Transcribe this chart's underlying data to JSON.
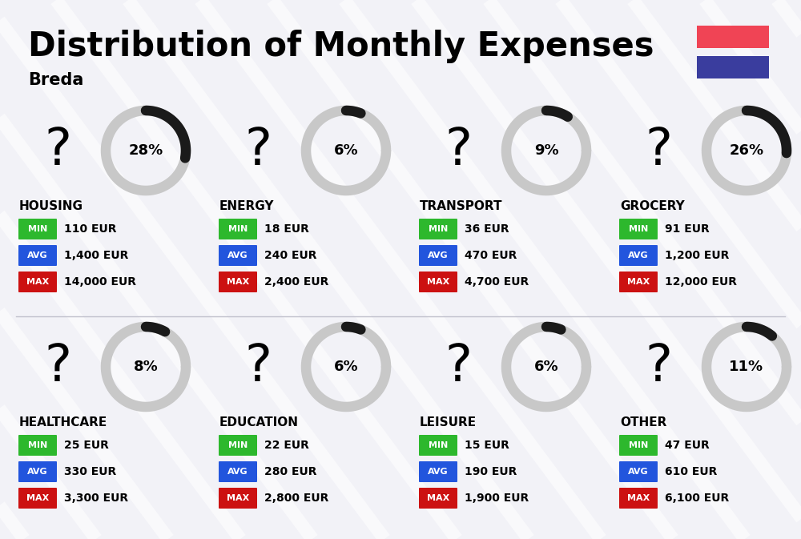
{
  "title": "Distribution of Monthly Expenses",
  "subtitle": "Breda",
  "bg_color": "#f2f2f7",
  "categories": [
    {
      "name": "HOUSING",
      "pct": 28,
      "icon": "🏙",
      "min": "110 EUR",
      "avg": "1,400 EUR",
      "max": "14,000 EUR",
      "row": 0,
      "col": 0
    },
    {
      "name": "ENERGY",
      "pct": 6,
      "icon": "⚡",
      "min": "18 EUR",
      "avg": "240 EUR",
      "max": "2,400 EUR",
      "row": 0,
      "col": 1
    },
    {
      "name": "TRANSPORT",
      "pct": 9,
      "icon": "🚌",
      "min": "36 EUR",
      "avg": "470 EUR",
      "max": "4,700 EUR",
      "row": 0,
      "col": 2
    },
    {
      "name": "GROCERY",
      "pct": 26,
      "icon": "🛒",
      "min": "91 EUR",
      "avg": "1,200 EUR",
      "max": "12,000 EUR",
      "row": 0,
      "col": 3
    },
    {
      "name": "HEALTHCARE",
      "pct": 8,
      "icon": "❤️",
      "min": "25 EUR",
      "avg": "330 EUR",
      "max": "3,300 EUR",
      "row": 1,
      "col": 0
    },
    {
      "name": "EDUCATION",
      "pct": 6,
      "icon": "🎓",
      "min": "22 EUR",
      "avg": "280 EUR",
      "max": "2,800 EUR",
      "row": 1,
      "col": 1
    },
    {
      "name": "LEISURE",
      "pct": 6,
      "icon": "🛍️",
      "min": "15 EUR",
      "avg": "190 EUR",
      "max": "1,900 EUR",
      "row": 1,
      "col": 2
    },
    {
      "name": "OTHER",
      "pct": 11,
      "icon": "💰",
      "min": "47 EUR",
      "avg": "610 EUR",
      "max": "6,100 EUR",
      "row": 1,
      "col": 3
    }
  ],
  "min_color": "#2db82d",
  "avg_color": "#2255dd",
  "max_color": "#cc1111",
  "label_color": "#ffffff",
  "flag_red": "#f04455",
  "flag_blue": "#3a3d9e",
  "donut_dark": "#1a1a1a",
  "donut_light": "#c8c8c8",
  "stripe_color": "#ffffff",
  "stripe_alpha": 0.55,
  "stripe_lw": 12
}
